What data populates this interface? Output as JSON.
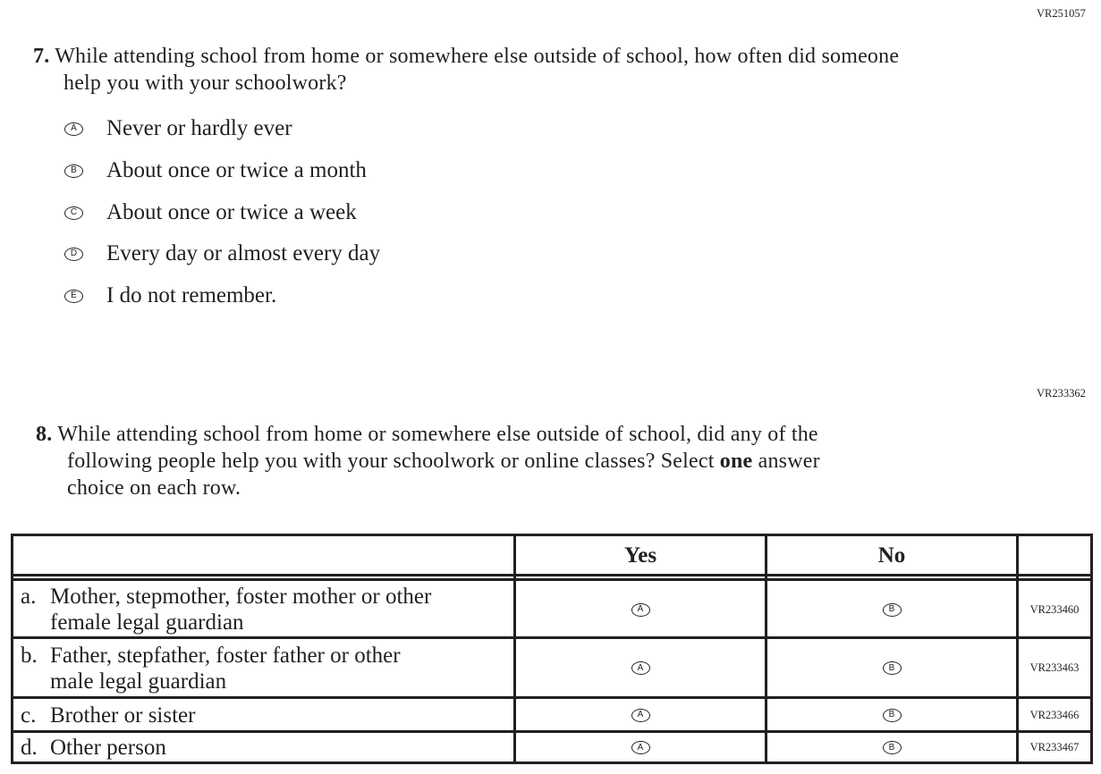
{
  "q7": {
    "code": "VR251057",
    "number": "7.",
    "text_line1": "While attending school from home or somewhere else outside of school, how often did someone",
    "text_line2": "help you with your schoolwork?",
    "options": [
      {
        "letter": "A",
        "label": "Never or hardly ever"
      },
      {
        "letter": "B",
        "label": "About once or twice a month"
      },
      {
        "letter": "C",
        "label": "About once or twice a week"
      },
      {
        "letter": "D",
        "label": "Every day or almost every day"
      },
      {
        "letter": "E",
        "label": "I do not remember."
      }
    ]
  },
  "q8": {
    "code": "VR233362",
    "number": "8.",
    "text_line1": "While attending school from home or somewhere else outside of school, did any of the",
    "text_line2_pre": "following people help you with your schoolwork or online classes? Select ",
    "text_line2_bold": "one",
    "text_line2_post": " answer",
    "text_line3": "choice on each row.",
    "table": {
      "headers": [
        "",
        "Yes",
        "No",
        ""
      ],
      "rows": [
        {
          "letter": "a.",
          "line1": "Mother, stepmother, foster mother or other",
          "line2": "female legal guardian",
          "yes": "A",
          "no": "B",
          "code": "VR233460"
        },
        {
          "letter": "b.",
          "line1": "Father, stepfather, foster father or other",
          "line2": "male legal guardian",
          "yes": "A",
          "no": "B",
          "code": "VR233463"
        },
        {
          "letter": "c.",
          "line1": "Brother or sister",
          "line2": "",
          "yes": "A",
          "no": "B",
          "code": "VR233466"
        },
        {
          "letter": "d.",
          "line1": "Other person",
          "line2": "",
          "yes": "A",
          "no": "B",
          "code": "VR233467"
        }
      ]
    }
  }
}
